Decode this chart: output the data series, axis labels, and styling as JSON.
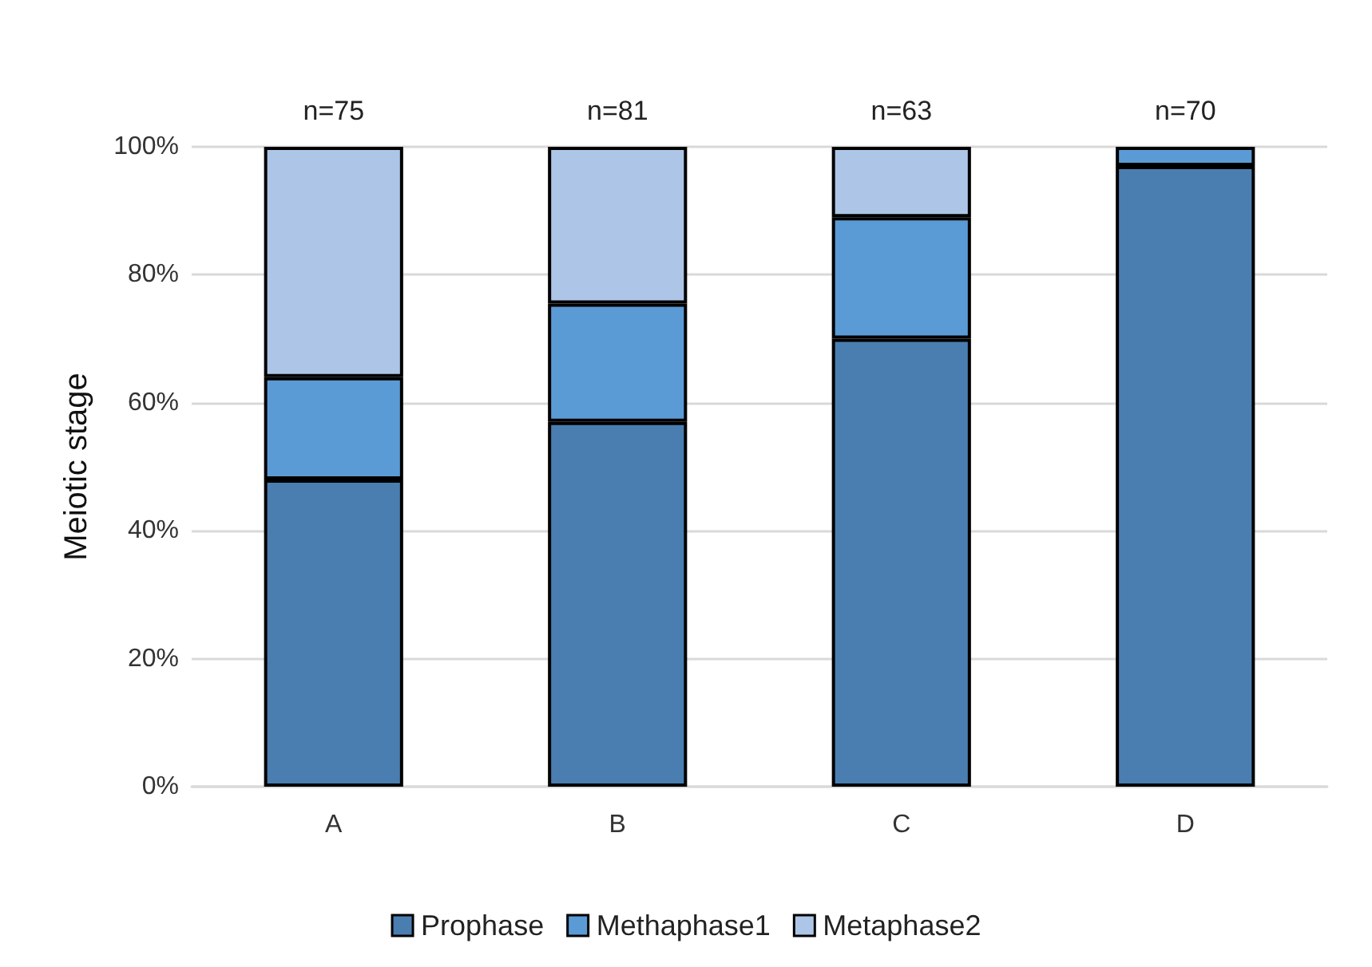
{
  "chart_data": {
    "type": "bar",
    "stacked": true,
    "ylabel": "Meiotic stage",
    "categories": [
      "A",
      "B",
      "C",
      "D"
    ],
    "series": [
      {
        "name": "Prophase",
        "color": "#4a7eb0",
        "values": [
          48,
          57,
          70,
          97
        ]
      },
      {
        "name": "Methaphase1",
        "color": "#5b9bd5",
        "values": [
          16,
          18.5,
          19,
          3
        ]
      },
      {
        "name": "Metaphase2",
        "color": "#adc5e6",
        "values": [
          36,
          24.5,
          11,
          null
        ]
      }
    ],
    "annotations": [
      {
        "text": "n=75",
        "x": "A",
        "y": 100
      },
      {
        "text": "n=81",
        "x": "B",
        "y": 100
      },
      {
        "text": "n=63",
        "x": "C",
        "y": 100
      },
      {
        "text": "n=70",
        "x": "D",
        "y": 100
      }
    ],
    "ylim": [
      0,
      100
    ],
    "yticks": [
      {
        "value": 0,
        "label": "0%"
      },
      {
        "value": 20,
        "label": "20%"
      },
      {
        "value": 40,
        "label": "40%"
      },
      {
        "value": 60,
        "label": "60%"
      },
      {
        "value": 80,
        "label": "80%"
      },
      {
        "value": 100,
        "label": "100%"
      }
    ],
    "grid": "y",
    "legend": "bottom"
  }
}
